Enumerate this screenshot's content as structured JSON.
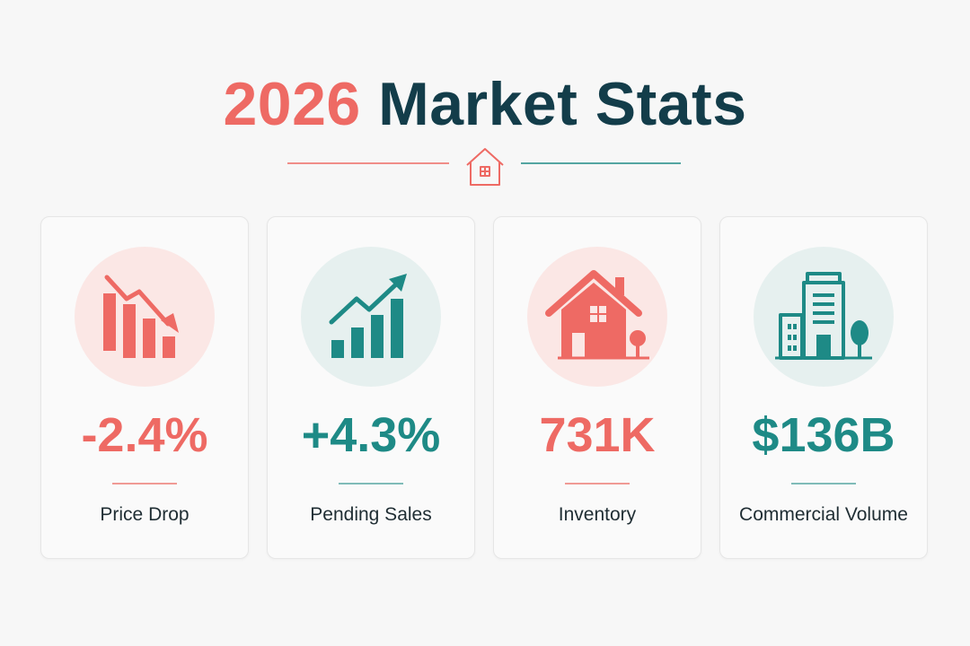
{
  "header": {
    "title_year": "2026",
    "title_rest": "Market Stats",
    "divider_icon": "house-icon"
  },
  "colors": {
    "accent_red": "#ee6a64",
    "accent_teal": "#1e8a86",
    "title_dark": "#133d4a"
  },
  "stats": [
    {
      "value": "-2.4%",
      "label": "Price Drop",
      "icon": "bar-chart-down-icon",
      "tone": "red"
    },
    {
      "value": "+4.3%",
      "label": "Pending Sales",
      "icon": "bar-chart-up-icon",
      "tone": "teal"
    },
    {
      "value": "731K",
      "label": "Inventory",
      "icon": "house-icon",
      "tone": "red"
    },
    {
      "value": "$136B",
      "label": "Commercial Volume",
      "icon": "office-building-icon",
      "tone": "teal"
    }
  ]
}
